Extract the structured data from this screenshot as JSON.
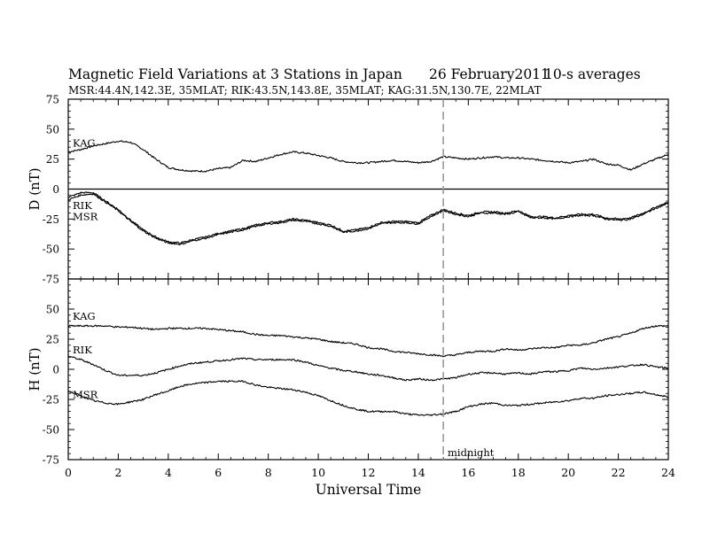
{
  "header": {
    "title": "Magnetic Field Variations at 3 Stations in Japan",
    "date": "26 February2011",
    "averaging": "10-s averages",
    "stations": "MSR:44.4N,142.3E, 35MLAT;  RIK:43.5N,143.8E, 35MLAT;  KAG:31.5N,130.7E, 22MLAT"
  },
  "chart_data": [
    {
      "type": "line",
      "panel": "top",
      "ylabel": "D (nT)",
      "ylim": [
        -75,
        75
      ],
      "yticks": [
        75,
        50,
        25,
        0,
        -25,
        -50,
        -75
      ],
      "xlim": [
        0,
        24
      ],
      "zero_line": true,
      "series": [
        {
          "name": "KAG",
          "x": [
            0,
            0.5,
            1,
            1.5,
            2,
            2.5,
            3,
            3.5,
            4,
            4.5,
            5,
            5.5,
            6,
            6.5,
            7,
            7.5,
            8,
            8.5,
            9,
            9.5,
            10,
            10.5,
            11,
            11.5,
            12,
            12.5,
            13,
            13.5,
            14,
            14.5,
            15,
            15.5,
            16,
            16.5,
            17,
            17.5,
            18,
            18.5,
            19,
            19.5,
            20,
            20.5,
            21,
            21.5,
            22,
            22.5,
            23,
            23.5,
            24
          ],
          "values": [
            31,
            33,
            36,
            38,
            40,
            39,
            33,
            25,
            18,
            16,
            15,
            15,
            17,
            18,
            24,
            23,
            26,
            29,
            31,
            30,
            28,
            26,
            23,
            22,
            22,
            23,
            24,
            23,
            22,
            23,
            27,
            26,
            25,
            26,
            27,
            26,
            26,
            25,
            24,
            23,
            22,
            23,
            25,
            21,
            20,
            16,
            21,
            25,
            29
          ]
        },
        {
          "name": "RIK",
          "x": [
            0,
            0.5,
            1,
            1.5,
            2,
            2.5,
            3,
            3.5,
            4,
            4.5,
            5,
            5.5,
            6,
            6.5,
            7,
            7.5,
            8,
            8.5,
            9,
            9.5,
            10,
            10.5,
            11,
            11.5,
            12,
            12.5,
            13,
            13.5,
            14,
            14.5,
            15,
            15.5,
            16,
            16.5,
            17,
            17.5,
            18,
            18.5,
            19,
            19.5,
            20,
            20.5,
            21,
            21.5,
            22,
            22.5,
            23,
            23.5,
            24
          ],
          "values": [
            -7,
            -3,
            -3,
            -10,
            -17,
            -26,
            -34,
            -40,
            -44,
            -45,
            -42,
            -40,
            -37,
            -35,
            -33,
            -30,
            -28,
            -27,
            -25,
            -26,
            -28,
            -30,
            -35,
            -34,
            -32,
            -28,
            -27,
            -27,
            -28,
            -22,
            -17,
            -20,
            -22,
            -19,
            -19,
            -20,
            -18,
            -23,
            -23,
            -24,
            -22,
            -21,
            -21,
            -24,
            -25,
            -24,
            -20,
            -15,
            -11
          ]
        },
        {
          "name": "MSR",
          "x": [
            0,
            0.5,
            1,
            1.5,
            2,
            2.5,
            3,
            3.5,
            4,
            4.5,
            5,
            5.5,
            6,
            6.5,
            7,
            7.5,
            8,
            8.5,
            9,
            9.5,
            10,
            10.5,
            11,
            11.5,
            12,
            12.5,
            13,
            13.5,
            14,
            14.5,
            15,
            15.5,
            16,
            16.5,
            17,
            17.5,
            18,
            18.5,
            19,
            19.5,
            20,
            20.5,
            21,
            21.5,
            22,
            22.5,
            23,
            23.5,
            24
          ],
          "values": [
            -9,
            -5,
            -4,
            -11,
            -18,
            -27,
            -35,
            -41,
            -45,
            -46,
            -43,
            -41,
            -38,
            -36,
            -34,
            -31,
            -29,
            -28,
            -26,
            -27,
            -29,
            -31,
            -36,
            -35,
            -33,
            -29,
            -28,
            -28,
            -29,
            -23,
            -18,
            -21,
            -23,
            -20,
            -20,
            -21,
            -19,
            -24,
            -24,
            -25,
            -23,
            -22,
            -22,
            -25,
            -26,
            -25,
            -21,
            -16,
            -12
          ]
        }
      ]
    },
    {
      "type": "line",
      "panel": "bottom",
      "ylabel": "H (nT)",
      "xlabel": "Universal Time",
      "ylim": [
        -75,
        75
      ],
      "yticks": [
        50,
        25,
        0,
        -25,
        -50,
        -75
      ],
      "xlim": [
        0,
        24
      ],
      "xticks": [
        0,
        2,
        4,
        6,
        8,
        10,
        12,
        14,
        16,
        18,
        20,
        22,
        24
      ],
      "series": [
        {
          "name": "KAG",
          "x": [
            0,
            0.5,
            1,
            1.5,
            2,
            2.5,
            3,
            3.5,
            4,
            4.5,
            5,
            5.5,
            6,
            6.5,
            7,
            7.5,
            8,
            8.5,
            9,
            9.5,
            10,
            10.5,
            11,
            11.5,
            12,
            12.5,
            13,
            13.5,
            14,
            14.5,
            15,
            15.5,
            16,
            16.5,
            17,
            17.5,
            18,
            18.5,
            19,
            19.5,
            20,
            20.5,
            21,
            21.5,
            22,
            22.5,
            23,
            23.5,
            24
          ],
          "values": [
            36,
            36,
            36,
            36,
            35,
            35,
            34,
            33,
            34,
            34,
            34,
            34,
            33,
            32,
            31,
            29,
            28,
            28,
            27,
            26,
            25,
            23,
            22,
            21,
            18,
            17,
            15,
            14,
            13,
            12,
            11,
            12,
            14,
            15,
            15,
            17,
            16,
            17,
            18,
            18,
            20,
            20,
            22,
            25,
            27,
            30,
            34,
            36,
            36
          ]
        },
        {
          "name": "RIK",
          "x": [
            0,
            0.5,
            1,
            1.5,
            2,
            2.5,
            3,
            3.5,
            4,
            4.5,
            5,
            5.5,
            6,
            6.5,
            7,
            7.5,
            8,
            8.5,
            9,
            9.5,
            10,
            10.5,
            11,
            11.5,
            12,
            12.5,
            13,
            13.5,
            14,
            14.5,
            15,
            15.5,
            16,
            16.5,
            17,
            17.5,
            18,
            18.5,
            19,
            19.5,
            20,
            20.5,
            21,
            21.5,
            22,
            22.5,
            23,
            23.5,
            24
          ],
          "values": [
            11,
            8,
            4,
            -1,
            -5,
            -5,
            -5,
            -3,
            0,
            3,
            5,
            6,
            7,
            8,
            9,
            8,
            8,
            8,
            8,
            6,
            3,
            1,
            -1,
            -2,
            -4,
            -5,
            -7,
            -9,
            -8,
            -9,
            -8,
            -7,
            -4,
            -3,
            -3,
            -4,
            -3,
            -4,
            -2,
            -2,
            -1,
            1,
            0,
            1,
            2,
            3,
            4,
            2,
            1
          ]
        },
        {
          "name": "MSR",
          "x": [
            0,
            0.5,
            1,
            1.5,
            2,
            2.5,
            3,
            3.5,
            4,
            4.5,
            5,
            5.5,
            6,
            6.5,
            7,
            7.5,
            8,
            8.5,
            9,
            9.5,
            10,
            10.5,
            11,
            11.5,
            12,
            12.5,
            13,
            13.5,
            14,
            14.5,
            15,
            15.5,
            16,
            16.5,
            17,
            17.5,
            18,
            18.5,
            19,
            19.5,
            20,
            20.5,
            21,
            21.5,
            22,
            22.5,
            23,
            23.5,
            24
          ],
          "values": [
            -18,
            -22,
            -26,
            -28,
            -29,
            -27,
            -25,
            -21,
            -18,
            -14,
            -12,
            -11,
            -10,
            -10,
            -10,
            -13,
            -15,
            -16,
            -17,
            -19,
            -22,
            -26,
            -30,
            -33,
            -35,
            -35,
            -35,
            -37,
            -38,
            -38,
            -37,
            -35,
            -31,
            -29,
            -28,
            -30,
            -30,
            -29,
            -28,
            -27,
            -26,
            -24,
            -24,
            -22,
            -21,
            -20,
            -19,
            -21,
            -23
          ]
        }
      ]
    }
  ],
  "annotations": {
    "midnight_label": "midnight",
    "midnight_ut": 15
  },
  "colors": {
    "line": "#000000",
    "marker_line": "#999999"
  }
}
